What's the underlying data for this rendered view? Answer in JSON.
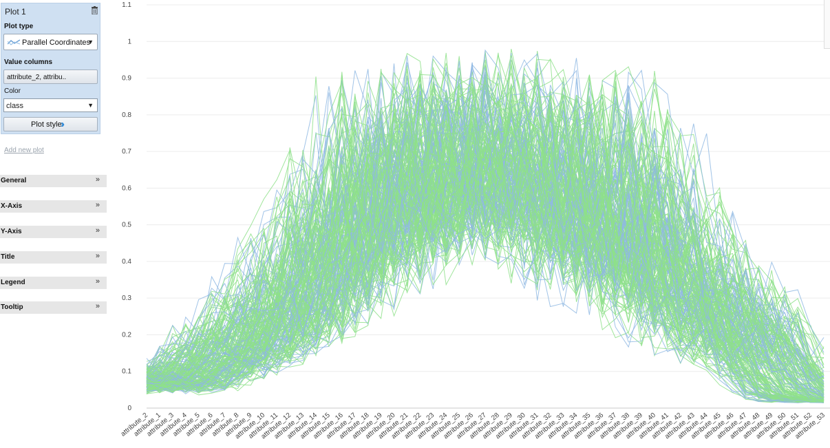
{
  "sidebar": {
    "plot_title": "Plot 1",
    "plot_type_label": "Plot type",
    "plot_type_value": "Parallel Coordinates",
    "value_columns_label": "Value columns",
    "value_columns_value": "attribute_2, attribu..",
    "color_label": "Color",
    "color_value": "class",
    "plot_style_label": "Plot style",
    "add_new_plot": "Add new plot",
    "sections": [
      "General",
      "X-Axis",
      "Y-Axis",
      "Title",
      "Legend",
      "Tooltip"
    ],
    "icons": {
      "trash": "trash-icon",
      "plot_type": "parallel-coordinates-icon",
      "dropdown": "triangle-down-icon",
      "plot_style": "double-chevron-right-icon",
      "expand": "double-chevron-down-icon"
    }
  },
  "chart_data": {
    "type": "line",
    "subtype": "parallel-coordinates",
    "title": "",
    "xlabel": "",
    "ylabel": "",
    "ylim": [
      0,
      1.1
    ],
    "yticks": [
      "0",
      "0.1",
      "0.2",
      "0.3",
      "0.4",
      "0.5",
      "0.6",
      "0.7",
      "0.8",
      "0.9",
      "1",
      "1.1"
    ],
    "grid": true,
    "legend": "none",
    "categories": [
      "attribute_2",
      "attribute_1",
      "attribute_3",
      "attribute_4",
      "attribute_5",
      "attribute_6",
      "attribute_7",
      "attribute_8",
      "attribute_9",
      "attribute_10",
      "attribute_11",
      "attribute_12",
      "attribute_13",
      "attribute_14",
      "attribute_15",
      "attribute_16",
      "attribute_17",
      "attribute_18",
      "attribute_19",
      "attribute_20",
      "attribute_21",
      "attribute_22",
      "attribute_23",
      "attribute_24",
      "attribute_25",
      "attribute_26",
      "attribute_27",
      "attribute_28",
      "attribute_29",
      "attribute_30",
      "attribute_31",
      "attribute_32",
      "attribute_33",
      "attribute_34",
      "attribute_35",
      "attribute_36",
      "attribute_37",
      "attribute_38",
      "attribute_39",
      "attribute_40",
      "attribute_41",
      "attribute_42",
      "attribute_43",
      "attribute_44",
      "attribute_45",
      "attribute_46",
      "attribute_47",
      "attribute_48",
      "attribute_49",
      "attribute_50",
      "attribute_51",
      "attribute_52",
      "attribute_53"
    ],
    "class_colors": [
      "#8fb9e3",
      "#8ee08a"
    ],
    "profile_envelope": {
      "typical_max": [
        0.12,
        0.1,
        0.12,
        0.15,
        0.18,
        0.22,
        0.26,
        0.3,
        0.35,
        0.4,
        0.45,
        0.52,
        0.6,
        0.68,
        0.76,
        0.83,
        0.9,
        0.95,
        0.98,
        1.0,
        1.0,
        1.0,
        1.0,
        1.0,
        1.0,
        1.0,
        1.0,
        1.0,
        1.0,
        0.98,
        0.95,
        0.93,
        0.92,
        0.94,
        0.96,
        0.96,
        0.94,
        0.9,
        0.85,
        0.78,
        0.7,
        0.62,
        0.55,
        0.48,
        0.42,
        0.38,
        0.34,
        0.28,
        0.2,
        0.12,
        0.06,
        0.04,
        0.03
      ],
      "typical_min": [
        0.02,
        0.02,
        0.02,
        0.02,
        0.03,
        0.03,
        0.03,
        0.04,
        0.04,
        0.04,
        0.05,
        0.05,
        0.06,
        0.06,
        0.07,
        0.08,
        0.09,
        0.1,
        0.12,
        0.15,
        0.18,
        0.2,
        0.22,
        0.24,
        0.26,
        0.28,
        0.3,
        0.3,
        0.28,
        0.25,
        0.22,
        0.18,
        0.15,
        0.12,
        0.1,
        0.08,
        0.07,
        0.06,
        0.05,
        0.05,
        0.05,
        0.04,
        0.04,
        0.04,
        0.03,
        0.03,
        0.03,
        0.02,
        0.02,
        0.01,
        0.01,
        0.01,
        0.01
      ]
    },
    "line_count": 220
  }
}
